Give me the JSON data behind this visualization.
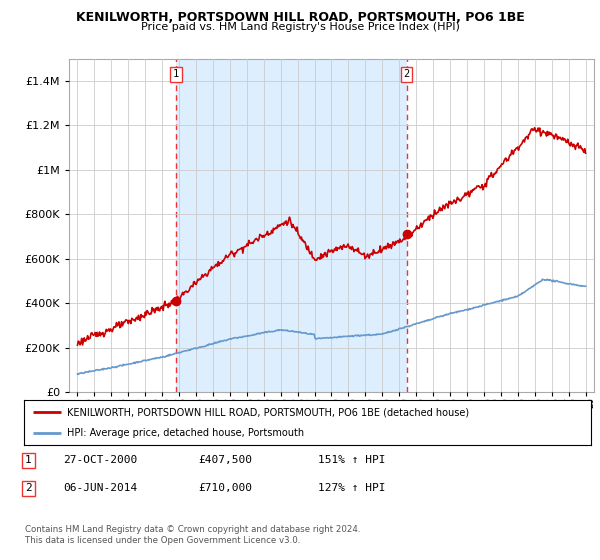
{
  "title": "KENILWORTH, PORTSDOWN HILL ROAD, PORTSMOUTH, PO6 1BE",
  "subtitle": "Price paid vs. HM Land Registry's House Price Index (HPI)",
  "legend_line1": "KENILWORTH, PORTSDOWN HILL ROAD, PORTSMOUTH, PO6 1BE (detached house)",
  "legend_line2": "HPI: Average price, detached house, Portsmouth",
  "footer": "Contains HM Land Registry data © Crown copyright and database right 2024.\nThis data is licensed under the Open Government Licence v3.0.",
  "transaction1_date": "27-OCT-2000",
  "transaction1_price": "£407,500",
  "transaction1_hpi": "151% ↑ HPI",
  "transaction2_date": "06-JUN-2014",
  "transaction2_price": "£710,000",
  "transaction2_hpi": "127% ↑ HPI",
  "xlim_start": 1994.5,
  "xlim_end": 2025.5,
  "ylim_bottom": 0,
  "ylim_top": 1500000,
  "yticks": [
    0,
    200000,
    400000,
    600000,
    800000,
    1000000,
    1200000,
    1400000
  ],
  "ytick_labels": [
    "£0",
    "£200K",
    "£400K",
    "£600K",
    "£800K",
    "£1M",
    "£1.2M",
    "£1.4M"
  ],
  "transaction1_x": 2000.83,
  "transaction1_y": 407500,
  "transaction2_x": 2014.43,
  "transaction2_y": 710000,
  "vline1_x": 2000.83,
  "vline2_x": 2014.43,
  "hpi_color": "#6699cc",
  "price_color": "#cc0000",
  "vline_color": "#ee3333",
  "shade_color": "#ddeeff",
  "background_color": "#ffffff",
  "grid_color": "#cccccc"
}
